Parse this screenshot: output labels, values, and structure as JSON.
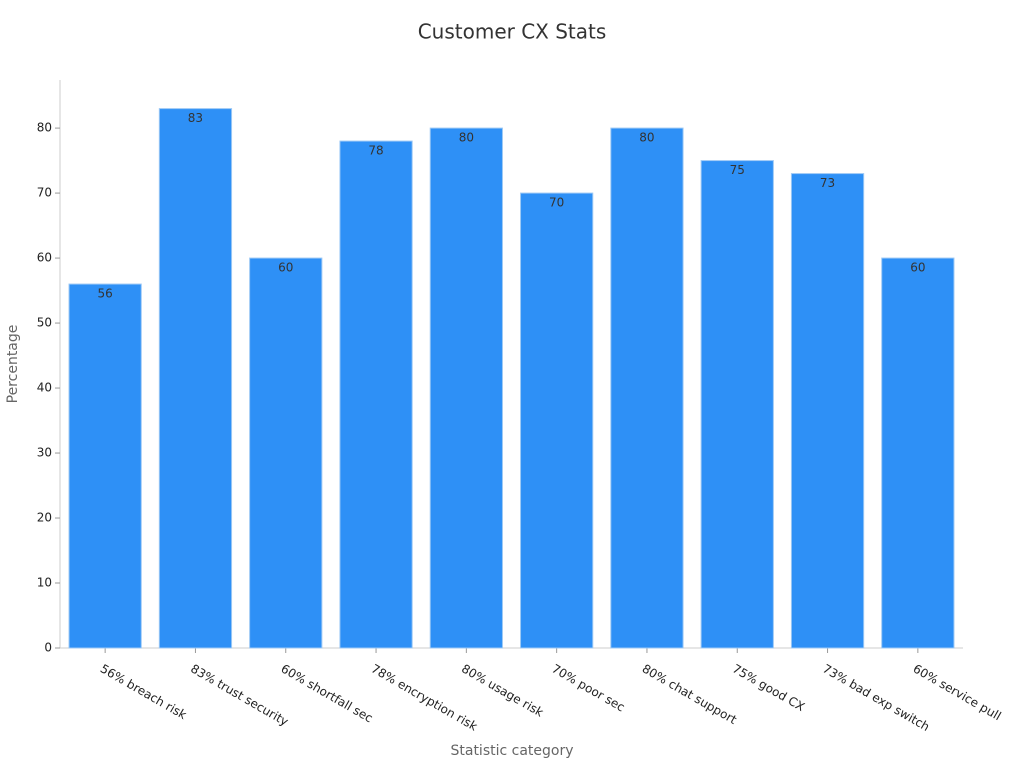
{
  "chart_data": {
    "type": "bar",
    "title": "Customer CX Stats",
    "x_label": "Statistic category",
    "y_label": "Percentage",
    "categories": [
      "56% breach risk",
      "83% trust security",
      "60% shortfall sec",
      "78% encryption risk",
      "80% usage risk",
      "70% poor sec",
      "80% chat support",
      "75% good CX",
      "73% bad exp switch",
      "60% service pull"
    ],
    "values": [
      56,
      83,
      60,
      78,
      80,
      70,
      80,
      75,
      73,
      60
    ],
    "color": "#2e90f6",
    "ylim": [
      0,
      87.4
    ],
    "yticks": [
      0,
      10,
      20,
      30,
      40,
      50,
      60,
      70,
      80
    ],
    "grid": false
  }
}
